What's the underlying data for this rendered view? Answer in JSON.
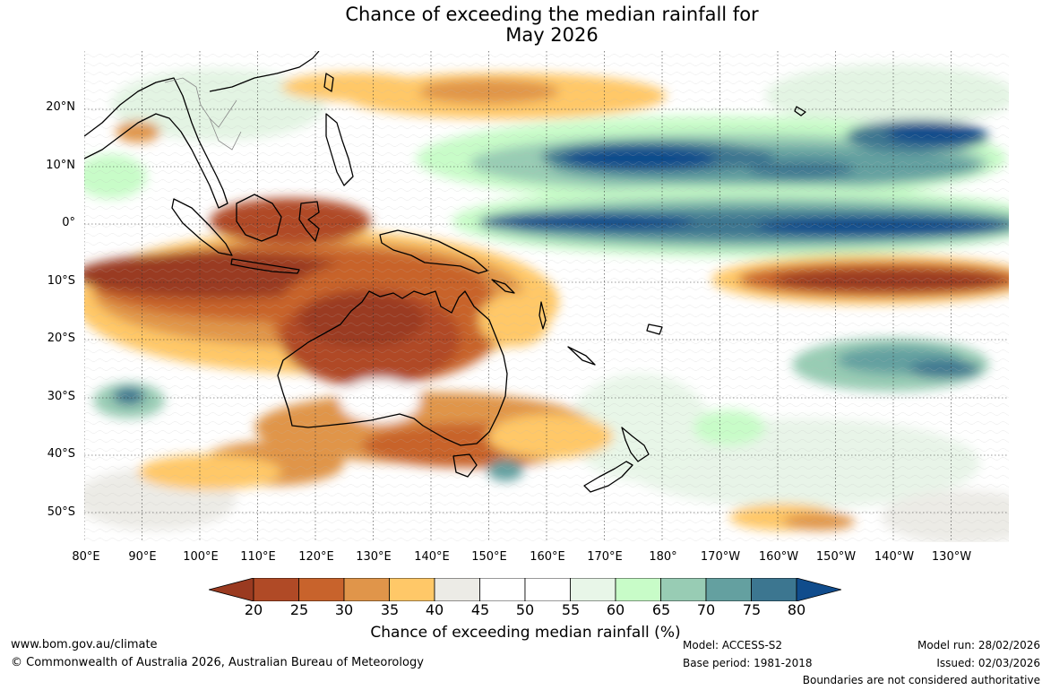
{
  "title": {
    "line1": "Chance of exceeding the median rainfall for",
    "line2": "May 2026"
  },
  "map": {
    "lat_labels": [
      "20°N",
      "10°N",
      "0°",
      "10°S",
      "20°S",
      "30°S",
      "40°S",
      "50°S"
    ],
    "lon_labels": [
      "80°E",
      "90°E",
      "100°E",
      "110°E",
      "120°E",
      "130°E",
      "140°E",
      "150°E",
      "160°E",
      "170°E",
      "180°",
      "170°W",
      "160°W",
      "150°W",
      "140°W",
      "130°W"
    ]
  },
  "colorbar": {
    "ticks": [
      "20",
      "25",
      "30",
      "35",
      "40",
      "45",
      "50",
      "55",
      "60",
      "65",
      "70",
      "75",
      "80"
    ],
    "colors": [
      "#9a3a20",
      "#b04a26",
      "#c8632c",
      "#e0954a",
      "#ffc868",
      "#ecebe6",
      "#ffffff",
      "#ffffff",
      "#e8f6e8",
      "#c8fcc8",
      "#98ccb4",
      "#64a0a0",
      "#3c7690",
      "#104c8c"
    ],
    "label": "Chance of exceeding median rainfall (%)"
  },
  "footer": {
    "website": "www.bom.gov.au/climate",
    "copyright": "© Commonwealth of Australia 2026, Australian Bureau of Meteorology",
    "model": "Model: ACCESS-S2",
    "base_period": "Base period: 1981-2018",
    "model_run": "Model run: 28/02/2026",
    "issued": "Issued: 02/03/2026",
    "disclaimer": "Boundaries are not considered authoritative"
  }
}
